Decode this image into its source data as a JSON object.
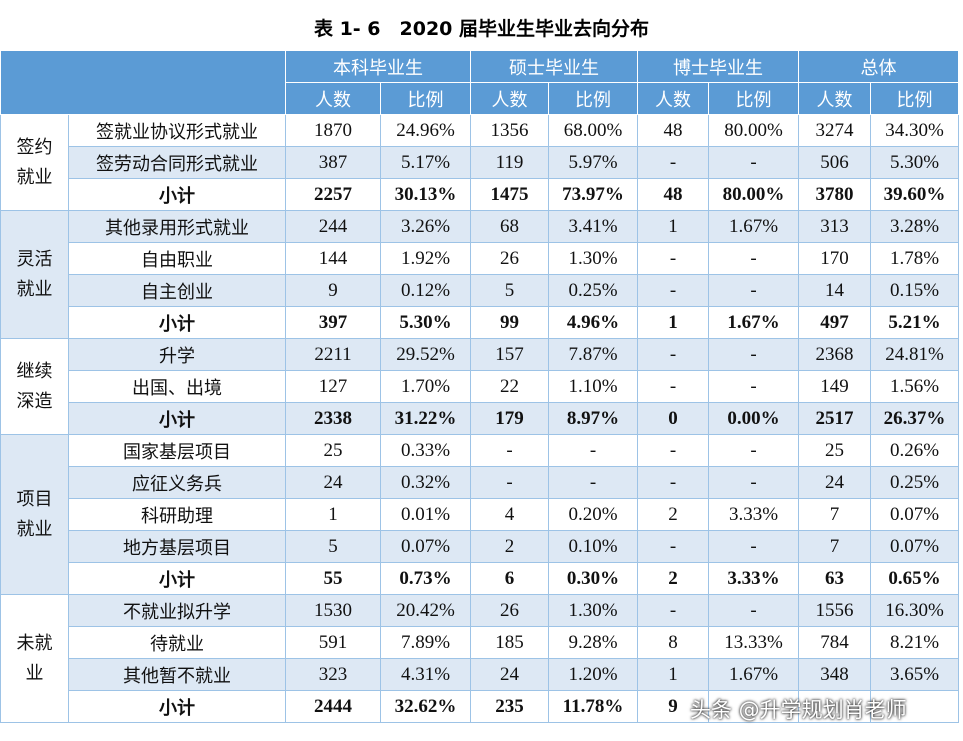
{
  "title": "表 1- 6　2020 届毕业生毕业去向分布",
  "header": {
    "groups": [
      "本科毕业生",
      "硕士毕业生",
      "博士毕业生",
      "总体"
    ],
    "subheads": [
      "人数",
      "比例",
      "人数",
      "比例",
      "人数",
      "比例",
      "人数",
      "比例"
    ]
  },
  "sections": [
    {
      "label": [
        "签约",
        "就业"
      ],
      "rows": [
        {
          "label": "签就业协议形式就业",
          "cells": [
            "1870",
            "24.96%",
            "1356",
            "68.00%",
            "48",
            "80.00%",
            "3274",
            "34.30%"
          ]
        },
        {
          "label": "签劳动合同形式就业",
          "cells": [
            "387",
            "5.17%",
            "119",
            "5.97%",
            "-",
            "-",
            "506",
            "5.30%"
          ]
        }
      ],
      "subtotal": {
        "label": "小计",
        "cells": [
          "2257",
          "30.13%",
          "1475",
          "73.97%",
          "48",
          "80.00%",
          "3780",
          "39.60%"
        ]
      }
    },
    {
      "label": [
        "灵活",
        "就业"
      ],
      "rows": [
        {
          "label": "其他录用形式就业",
          "cells": [
            "244",
            "3.26%",
            "68",
            "3.41%",
            "1",
            "1.67%",
            "313",
            "3.28%"
          ]
        },
        {
          "label": "自由职业",
          "cells": [
            "144",
            "1.92%",
            "26",
            "1.30%",
            "-",
            "-",
            "170",
            "1.78%"
          ]
        },
        {
          "label": "自主创业",
          "cells": [
            "9",
            "0.12%",
            "5",
            "0.25%",
            "-",
            "-",
            "14",
            "0.15%"
          ]
        }
      ],
      "subtotal": {
        "label": "小计",
        "cells": [
          "397",
          "5.30%",
          "99",
          "4.96%",
          "1",
          "1.67%",
          "497",
          "5.21%"
        ]
      }
    },
    {
      "label": [
        "继续",
        "深造"
      ],
      "rows": [
        {
          "label": "升学",
          "cells": [
            "2211",
            "29.52%",
            "157",
            "7.87%",
            "-",
            "-",
            "2368",
            "24.81%"
          ]
        },
        {
          "label": "出国、出境",
          "cells": [
            "127",
            "1.70%",
            "22",
            "1.10%",
            "-",
            "-",
            "149",
            "1.56%"
          ]
        }
      ],
      "subtotal": {
        "label": "小计",
        "cells": [
          "2338",
          "31.22%",
          "179",
          "8.97%",
          "0",
          "0.00%",
          "2517",
          "26.37%"
        ]
      }
    },
    {
      "label": [
        "项目",
        "就业"
      ],
      "rows": [
        {
          "label": "国家基层项目",
          "cells": [
            "25",
            "0.33%",
            "-",
            "-",
            "-",
            "-",
            "25",
            "0.26%"
          ]
        },
        {
          "label": "应征义务兵",
          "cells": [
            "24",
            "0.32%",
            "-",
            "-",
            "-",
            "-",
            "24",
            "0.25%"
          ]
        },
        {
          "label": "科研助理",
          "cells": [
            "1",
            "0.01%",
            "4",
            "0.20%",
            "2",
            "3.33%",
            "7",
            "0.07%"
          ]
        },
        {
          "label": "地方基层项目",
          "cells": [
            "5",
            "0.07%",
            "2",
            "0.10%",
            "-",
            "-",
            "7",
            "0.07%"
          ]
        }
      ],
      "subtotal": {
        "label": "小计",
        "cells": [
          "55",
          "0.73%",
          "6",
          "0.30%",
          "2",
          "3.33%",
          "63",
          "0.65%"
        ]
      }
    },
    {
      "label": [
        "未就",
        "业"
      ],
      "rows": [
        {
          "label": "不就业拟升学",
          "cells": [
            "1530",
            "20.42%",
            "26",
            "1.30%",
            "-",
            "-",
            "1556",
            "16.30%"
          ]
        },
        {
          "label": "待就业",
          "cells": [
            "591",
            "7.89%",
            "185",
            "9.28%",
            "8",
            "13.33%",
            "784",
            "8.21%"
          ]
        },
        {
          "label": "其他暂不就业",
          "cells": [
            "323",
            "4.31%",
            "24",
            "1.20%",
            "1",
            "1.67%",
            "348",
            "3.65%"
          ]
        }
      ],
      "subtotal": {
        "label": "小计",
        "cells": [
          "2444",
          "32.62%",
          "235",
          "11.78%",
          "9",
          null,
          null,
          null
        ]
      }
    }
  ],
  "watermark": "头条 @升学规划肖老师"
}
